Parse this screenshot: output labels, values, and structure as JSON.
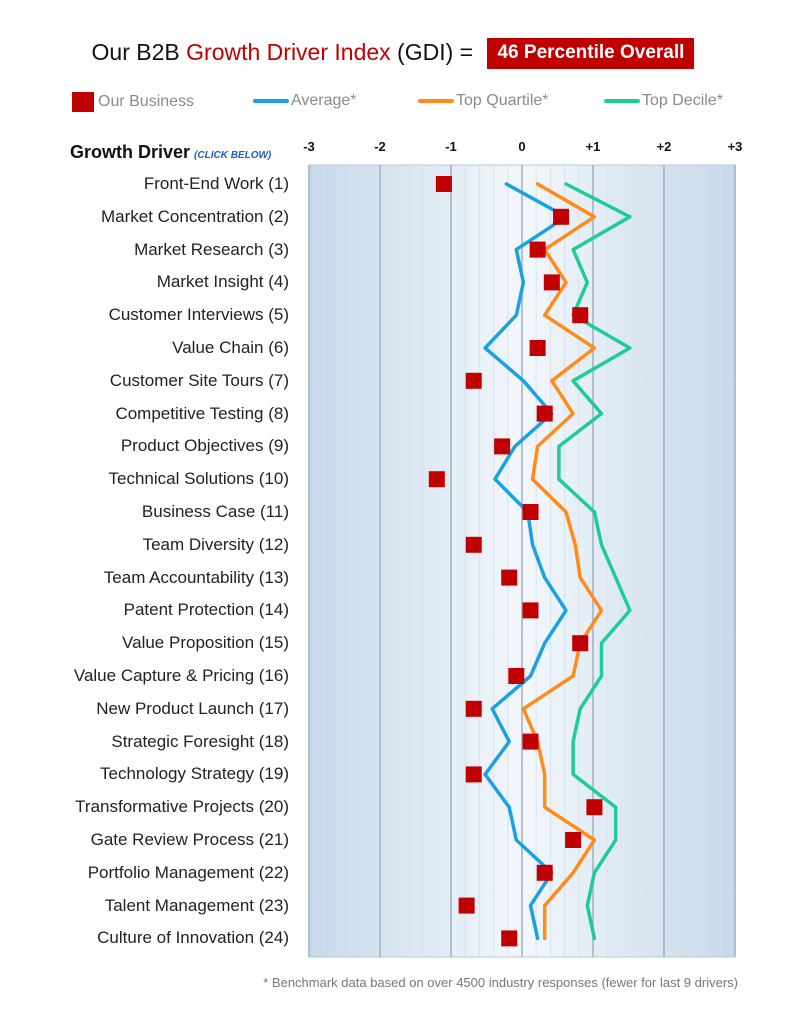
{
  "header": {
    "title_prefix": "Our B2B ",
    "title_highlight": "Growth Driver Index",
    "title_suffix": " (GDI) =",
    "badge": "46 Percentile Overall"
  },
  "legend": {
    "ours": "Our Business",
    "average": "Average*",
    "top_quartile": "Top Quartile*",
    "top_decile": "Top Decile*"
  },
  "column_header": {
    "label": "Growth Driver",
    "click_hint": "(CLICK BELOW)"
  },
  "footnote": "* Benchmark data based on over 4500 industry responses (fewer for last 9 drivers)",
  "colors": {
    "ours": "#c00000",
    "average": "#1ba1e2",
    "top_quartile": "#ff8c1a",
    "top_decile": "#1fcc96",
    "title_accent": "#c00000"
  },
  "chart_data": {
    "type": "line",
    "orientation": "horizontal",
    "xlim": [
      -3,
      3
    ],
    "x_ticks": [
      "-3",
      "-2",
      "-1",
      "0",
      "+1",
      "+2",
      "+3"
    ],
    "categories": [
      "Front-End Work (1)",
      "Market Concentration (2)",
      "Market Research (3)",
      "Market Insight (4)",
      "Customer Interviews (5)",
      "Value Chain (6)",
      "Customer Site Tours (7)",
      "Competitive Testing (8)",
      "Product Objectives (9)",
      "Technical Solutions (10)",
      "Business Case (11)",
      "Team Diversity (12)",
      "Team Accountability (13)",
      "Patent Protection (14)",
      "Value Proposition (15)",
      "Value Capture & Pricing (16)",
      "New Product Launch (17)",
      "Strategic Foresight (18)",
      "Technology Strategy (19)",
      "Transformative Projects (20)",
      "Gate Review Process (21)",
      "Portfolio Management (22)",
      "Talent Management (23)",
      "Culture of Innovation (24)"
    ],
    "series": [
      {
        "name": "Our Business",
        "key": "ours",
        "style": "marker",
        "values": [
          -1.1,
          0.55,
          0.22,
          0.42,
          0.82,
          0.22,
          -0.68,
          0.32,
          -0.28,
          -1.2,
          0.12,
          -0.68,
          -0.18,
          0.12,
          0.82,
          -0.08,
          -0.68,
          0.12,
          -0.68,
          1.02,
          0.72,
          0.32,
          -0.78,
          -0.18
        ]
      },
      {
        "name": "Average*",
        "key": "average",
        "style": "line",
        "values": [
          -0.22,
          0.62,
          -0.08,
          0.02,
          -0.08,
          -0.52,
          0.02,
          0.42,
          -0.1,
          -0.38,
          0.08,
          0.15,
          0.32,
          0.62,
          0.32,
          0.12,
          -0.42,
          -0.18,
          -0.52,
          -0.18,
          -0.08,
          0.42,
          0.12,
          0.22
        ]
      },
      {
        "name": "Top Quartile*",
        "key": "top_quartile",
        "style": "line",
        "values": [
          0.22,
          1.02,
          0.32,
          0.62,
          0.32,
          1.02,
          0.42,
          0.72,
          0.22,
          0.15,
          0.62,
          0.75,
          0.82,
          1.12,
          0.82,
          0.72,
          0.02,
          0.22,
          0.32,
          0.32,
          1.02,
          0.72,
          0.32,
          0.32
        ]
      },
      {
        "name": "Top Decile*",
        "key": "top_decile",
        "style": "line",
        "values": [
          0.62,
          1.52,
          0.72,
          0.92,
          0.72,
          1.52,
          0.72,
          1.12,
          0.52,
          0.52,
          1.02,
          1.12,
          1.32,
          1.52,
          1.12,
          1.12,
          0.82,
          0.72,
          0.72,
          1.32,
          1.32,
          1.02,
          0.92,
          1.02
        ]
      }
    ]
  }
}
